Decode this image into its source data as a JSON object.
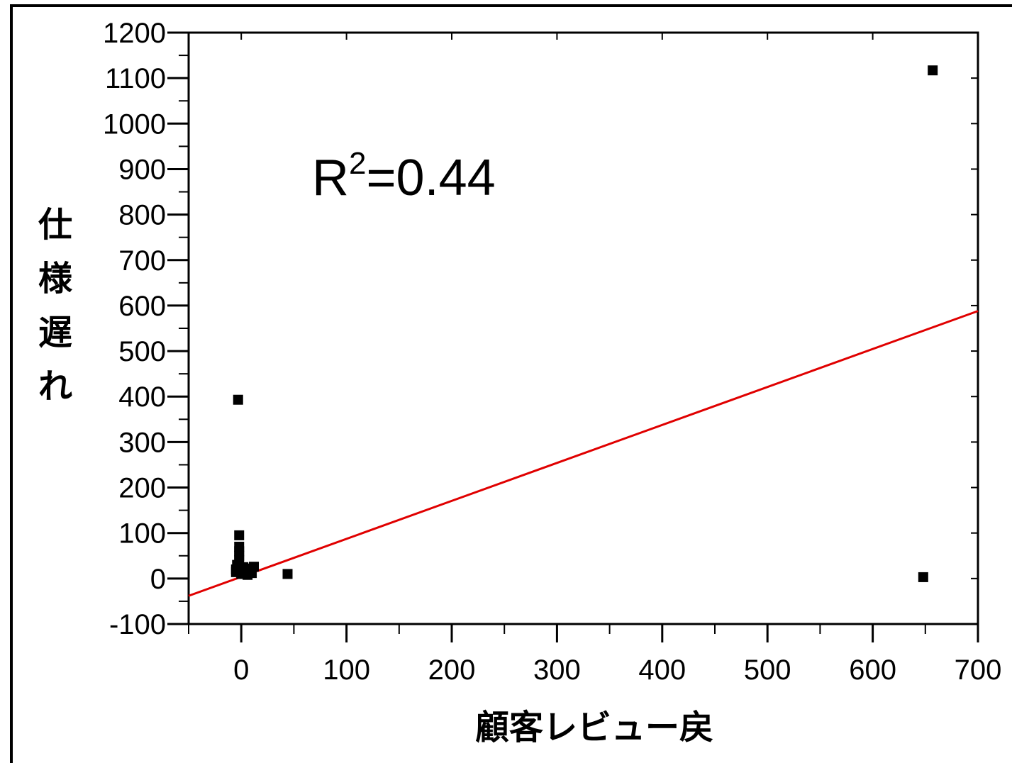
{
  "chart_data": {
    "type": "scatter",
    "title": "",
    "xlabel": "顧客レビュー戻",
    "ylabel": "仕様遅れ",
    "xlim": [
      -50,
      700
    ],
    "ylim": [
      -100,
      1200
    ],
    "xticks": [
      0,
      100,
      200,
      300,
      400,
      500,
      600,
      700
    ],
    "yticks": [
      -100,
      0,
      100,
      200,
      300,
      400,
      500,
      600,
      700,
      800,
      900,
      1000,
      1100,
      1200
    ],
    "grid": false,
    "legend": "none",
    "annotation": {
      "base": "R",
      "sup": "2",
      "rest": "=0.44"
    },
    "points": [
      {
        "x": -3,
        "y": 393
      },
      {
        "x": -2,
        "y": 95
      },
      {
        "x": -2,
        "y": 70
      },
      {
        "x": -2,
        "y": 60
      },
      {
        "x": -2,
        "y": 50
      },
      {
        "x": -2,
        "y": 40
      },
      {
        "x": -4,
        "y": 30
      },
      {
        "x": -5,
        "y": 20
      },
      {
        "x": -5,
        "y": 14
      },
      {
        "x": 0,
        "y": 10
      },
      {
        "x": 2,
        "y": 25
      },
      {
        "x": 4,
        "y": 18
      },
      {
        "x": 6,
        "y": 8
      },
      {
        "x": 8,
        "y": 22
      },
      {
        "x": 10,
        "y": 12
      },
      {
        "x": 12,
        "y": 26
      },
      {
        "x": 44,
        "y": 10
      },
      {
        "x": 648,
        "y": 3
      },
      {
        "x": 657,
        "y": 1117
      }
    ],
    "trendline": {
      "x": [
        -50,
        700
      ],
      "y": [
        -38,
        588
      ],
      "color": "#e00000"
    },
    "marker_color": "#000000"
  }
}
